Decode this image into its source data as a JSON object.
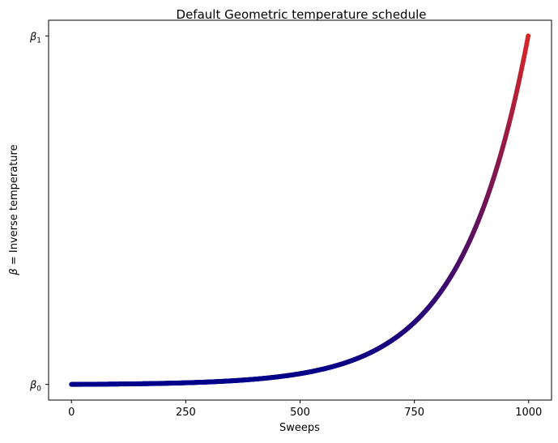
{
  "chart_data": {
    "type": "scatter",
    "title": "Default Geometric temperature schedule",
    "xlabel": "Sweeps",
    "ylabel": {
      "symbol": "β",
      "rest": " = Inverse temperature"
    },
    "xlim": [
      -50,
      1050
    ],
    "x_ticks": [
      0,
      250,
      500,
      750,
      1000
    ],
    "x_tick_labels": [
      "0",
      "250",
      "500",
      "750",
      "1000"
    ],
    "ylim": [
      -0.045,
      1.045
    ],
    "y_ticks": [
      {
        "value": 0,
        "symbol": "β",
        "subscript": "0"
      },
      {
        "value": 1,
        "symbol": "β",
        "subscript": "1"
      }
    ],
    "grid": false,
    "legend": "none",
    "series": [
      {
        "x_start": 0,
        "x_end": 999,
        "num_points": 1000,
        "y_start": 0,
        "y_end": 1,
        "schedule": "geometric",
        "color_start": "#00008b",
        "color_end": "#d62728"
      }
    ]
  }
}
